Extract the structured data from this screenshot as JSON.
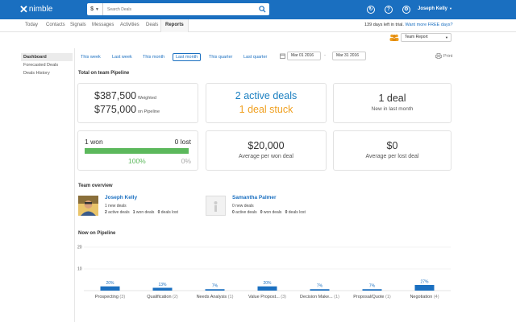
{
  "app": {
    "logo_text": "nimble",
    "search_placeholder": "Search Deals",
    "currency_symbol": "$",
    "user_name": "Joseph Kelly",
    "brand_color": "#1a6fc0"
  },
  "nav": {
    "tabs": [
      "Today",
      "Contacts",
      "Signals",
      "Messages",
      "Activities",
      "Deals",
      "Reports"
    ],
    "active_tab": "Reports",
    "trial_text": "139 days left in trial.",
    "trial_link": "Want more FREE days?"
  },
  "team_select": {
    "value": "Team Report"
  },
  "sidebar": {
    "items": [
      "Dashboard",
      "Forecasted Deals",
      "Deals History"
    ],
    "active": "Dashboard"
  },
  "periods": {
    "items": [
      "This week",
      "Last week",
      "This month",
      "Last month",
      "This quarter",
      "Last quarter"
    ],
    "active": "Last month"
  },
  "dates": {
    "from": "Mar 01 2016",
    "to": "Mar 31 2016",
    "separator": "-"
  },
  "print_label": "Print",
  "pipeline": {
    "section_title": "Total on team Pipeline",
    "weighted_value": "$387,500",
    "weighted_label": "Weighted",
    "pipeline_value": "$775,000",
    "pipeline_label": "on Pipeline",
    "active_deals": "2 active deals",
    "stuck_deals": "1 deal stuck",
    "new_deals": "1 deal",
    "new_deals_label": "New in last month",
    "won_label": "1 won",
    "lost_label": "0 lost",
    "won_pct": "100%",
    "lost_pct": "0%",
    "won_fraction": 1.0,
    "avg_won_value": "$20,000",
    "avg_won_label": "Average per won deal",
    "avg_lost_value": "$0",
    "avg_lost_label": "Average per lost deal",
    "active_color": "#1a7fc1",
    "stuck_color": "#f0a020",
    "progress_color": "#5cb85c"
  },
  "team_overview": {
    "section_title": "Team overview",
    "members": [
      {
        "name": "Joseph Kelly",
        "new_deals": "1 new deals",
        "active": "2",
        "active_label": "active deals",
        "won": "1",
        "won_label": "won deals",
        "lost": "0",
        "lost_label": "deals lost"
      },
      {
        "name": "Samantha Palmer",
        "new_deals": "0 new deals",
        "active": "0",
        "active_label": "active deals",
        "won": "0",
        "won_label": "won deals",
        "lost": "0",
        "lost_label": "deals lost"
      }
    ]
  },
  "chart_data": {
    "type": "bar",
    "title": "Now on Pipeline",
    "yticks": [
      10,
      20
    ],
    "ylim": [
      0,
      20
    ],
    "categories": [
      "Prospecting",
      "Qualification",
      "Needs Analysis",
      "Value Propost...",
      "Decision Make...",
      "Proposal/Quote",
      "Negotiation"
    ],
    "counts": [
      "(3)",
      "(2)",
      "(1)",
      "(3)",
      "(1)",
      "(1)",
      "(4)"
    ],
    "values": [
      3,
      2,
      1,
      3,
      1,
      1,
      4
    ],
    "labels": [
      "20%",
      "13%",
      "7%",
      "20%",
      "7%",
      "7%",
      "27%"
    ],
    "bar_color": "#1a6fc0"
  }
}
